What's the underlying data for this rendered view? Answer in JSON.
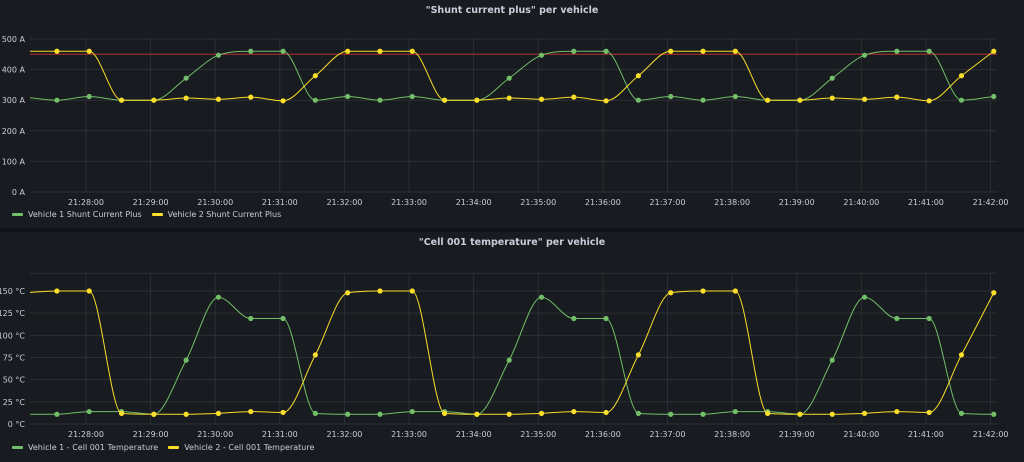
{
  "chart_data": [
    {
      "type": "line",
      "title": "\"Shunt current plus\" per vehicle",
      "x": [
        "21:27:03",
        "21:27:33",
        "21:28:03",
        "21:28:33",
        "21:29:03",
        "21:29:33",
        "21:30:03",
        "21:30:33",
        "21:31:03",
        "21:31:33",
        "21:32:03",
        "21:32:33",
        "21:33:03",
        "21:33:33",
        "21:34:03",
        "21:34:33",
        "21:35:03",
        "21:35:33",
        "21:36:03",
        "21:36:33",
        "21:37:03",
        "21:37:33",
        "21:38:03",
        "21:38:33",
        "21:39:03",
        "21:39:33",
        "21:40:03",
        "21:40:33",
        "21:41:03",
        "21:41:33",
        "21:42:03"
      ],
      "xlim": [
        "21:27:08",
        "21:42:06"
      ],
      "x_ticks": [
        "21:28:00",
        "21:29:00",
        "21:30:00",
        "21:31:00",
        "21:32:00",
        "21:33:00",
        "21:34:00",
        "21:35:00",
        "21:36:00",
        "21:37:00",
        "21:38:00",
        "21:39:00",
        "21:40:00",
        "21:41:00",
        "21:42:00"
      ],
      "ylim": [
        0,
        500
      ],
      "y_ticks": [
        0,
        100,
        200,
        300,
        400,
        500
      ],
      "y_tick_labels": [
        "0 A",
        "100 A",
        "200 A",
        "300 A",
        "400 A",
        "500 A"
      ],
      "unit": "A",
      "threshold": {
        "value": 450,
        "color": "#8c2a2a"
      },
      "grid": true,
      "legend_placement": "bottom-left",
      "series": [
        {
          "name": "Vehicle 1 Shunt Current Plus",
          "color": "#73bf69",
          "values": [
            310,
            300,
            312,
            300,
            300,
            372,
            447,
            460,
            460,
            300,
            312,
            300,
            312,
            300,
            300,
            372,
            447,
            460,
            460,
            300,
            312,
            300,
            312,
            300,
            300,
            372,
            447,
            460,
            460,
            300,
            312
          ]
        },
        {
          "name": "Vehicle 2 Shunt Current Plus",
          "color": "#fade2a",
          "values": [
            460,
            460,
            460,
            300,
            300,
            307,
            303,
            310,
            298,
            380,
            460,
            460,
            460,
            300,
            300,
            307,
            303,
            310,
            298,
            380,
            460,
            460,
            460,
            300,
            300,
            307,
            303,
            310,
            298,
            380,
            460
          ]
        }
      ]
    },
    {
      "type": "line",
      "title": "\"Cell 001 temperature\" per vehicle",
      "x": [
        "21:27:03",
        "21:27:33",
        "21:28:03",
        "21:28:33",
        "21:29:03",
        "21:29:33",
        "21:30:03",
        "21:30:33",
        "21:31:03",
        "21:31:33",
        "21:32:03",
        "21:32:33",
        "21:33:03",
        "21:33:33",
        "21:34:03",
        "21:34:33",
        "21:35:03",
        "21:35:33",
        "21:36:03",
        "21:36:33",
        "21:37:03",
        "21:37:33",
        "21:38:03",
        "21:38:33",
        "21:39:03",
        "21:39:33",
        "21:40:03",
        "21:40:33",
        "21:41:03",
        "21:41:33",
        "21:42:03"
      ],
      "xlim": [
        "21:27:08",
        "21:42:06"
      ],
      "x_ticks": [
        "21:28:00",
        "21:29:00",
        "21:30:00",
        "21:31:00",
        "21:32:00",
        "21:33:00",
        "21:34:00",
        "21:35:00",
        "21:36:00",
        "21:37:00",
        "21:38:00",
        "21:39:00",
        "21:40:00",
        "21:41:00",
        "21:42:00"
      ],
      "ylim": [
        0,
        170
      ],
      "y_ticks": [
        0,
        25,
        50,
        75,
        100,
        125,
        150
      ],
      "y_tick_labels": [
        "0 °C",
        "25 °C",
        "50 °C",
        "75 °C",
        "100 °C",
        "125 °C",
        "150 °C"
      ],
      "unit": "°C",
      "grid": true,
      "legend_placement": "bottom-left",
      "series": [
        {
          "name": "Vehicle 1 - Cell 001 Temperature",
          "color": "#73bf69",
          "values": [
            11,
            11,
            14,
            14,
            11,
            72,
            143,
            119,
            119,
            12,
            11,
            11,
            14,
            14,
            11,
            72,
            143,
            119,
            119,
            12,
            11,
            11,
            14,
            14,
            11,
            72,
            143,
            119,
            119,
            12,
            11
          ]
        },
        {
          "name": "Vehicle 2 - Cell 001 Temperature",
          "color": "#fade2a",
          "values": [
            148,
            150,
            150,
            12,
            11,
            11,
            12,
            14,
            13,
            78,
            148,
            150,
            150,
            12,
            11,
            11,
            12,
            14,
            13,
            78,
            148,
            150,
            150,
            12,
            11,
            11,
            12,
            14,
            13,
            78,
            148
          ]
        }
      ]
    }
  ]
}
